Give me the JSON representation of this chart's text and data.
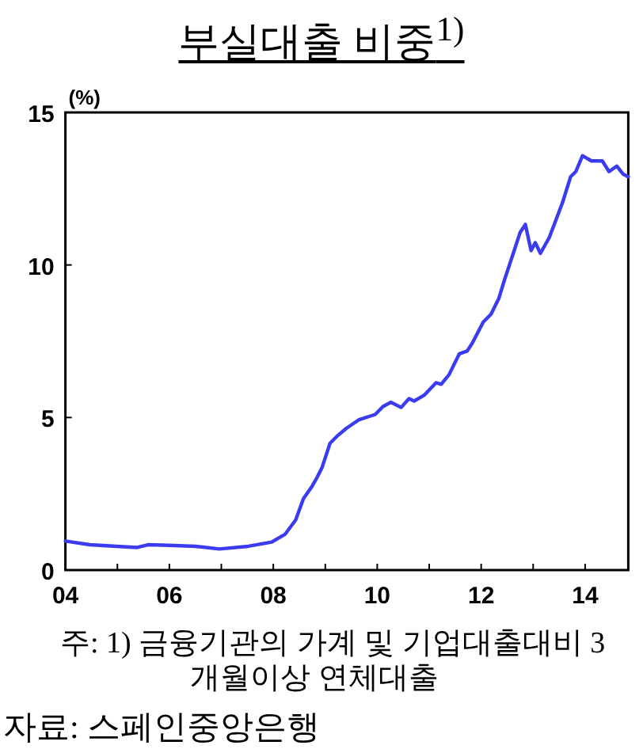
{
  "chart_data": {
    "type": "line",
    "title": "부실대출 비중$^{1)}$",
    "ylabel": "(%)",
    "annotations": [
      "주: 1) 금융기관의 가계 및 기업대출대비 3개월이상 연체대출",
      "자료: 스페인중앙은행"
    ],
    "xlim": [
      2004,
      2014.83
    ],
    "ylim": [
      0,
      15
    ],
    "xticks": [
      {
        "value": 2004,
        "label": "04"
      },
      {
        "value": 2005,
        "label": null
      },
      {
        "value": 2006,
        "label": "06"
      },
      {
        "value": 2007,
        "label": null
      },
      {
        "value": 2008,
        "label": "08"
      },
      {
        "value": 2009,
        "label": null
      },
      {
        "value": 2010,
        "label": "10"
      },
      {
        "value": 2011,
        "label": null
      },
      {
        "value": 2012,
        "label": "12"
      },
      {
        "value": 2013,
        "label": null
      },
      {
        "value": 2014,
        "label": "14"
      }
    ],
    "yticks": [
      0,
      5,
      10,
      15
    ],
    "grid": false,
    "marker": "none",
    "line_style": "solid",
    "series": [
      {
        "color": "#3b3bf0",
        "x": [
          2004.0,
          2004.47,
          2004.98,
          2005.38,
          2005.59,
          2005.99,
          2006.5,
          2006.96,
          2007.52,
          2007.97,
          2008.23,
          2008.43,
          2008.58,
          2008.74,
          2008.84,
          2008.94,
          2009.09,
          2009.24,
          2009.4,
          2009.65,
          2009.96,
          2010.11,
          2010.26,
          2010.46,
          2010.61,
          2010.71,
          2010.91,
          2011.13,
          2011.23,
          2011.38,
          2011.58,
          2011.73,
          2011.83,
          2012.04,
          2012.19,
          2012.34,
          2012.45,
          2012.65,
          2012.75,
          2012.85,
          2012.96,
          2013.04,
          2013.14,
          2013.31,
          2013.56,
          2013.72,
          2013.82,
          2013.95,
          2014.12,
          2014.33,
          2014.46,
          2014.61,
          2014.73,
          2014.83
        ],
        "values": [
          0.95,
          0.83,
          0.78,
          0.74,
          0.83,
          0.81,
          0.78,
          0.69,
          0.78,
          0.92,
          1.18,
          1.64,
          2.34,
          2.73,
          3.03,
          3.37,
          4.15,
          4.41,
          4.64,
          4.93,
          5.1,
          5.36,
          5.5,
          5.33,
          5.62,
          5.54,
          5.74,
          6.14,
          6.09,
          6.4,
          7.09,
          7.18,
          7.44,
          8.13,
          8.39,
          8.91,
          9.52,
          10.55,
          11.07,
          11.33,
          10.47,
          10.73,
          10.38,
          10.9,
          12.02,
          12.89,
          13.06,
          13.58,
          13.41,
          13.41,
          13.06,
          13.24,
          12.98,
          12.89
        ]
      }
    ]
  }
}
